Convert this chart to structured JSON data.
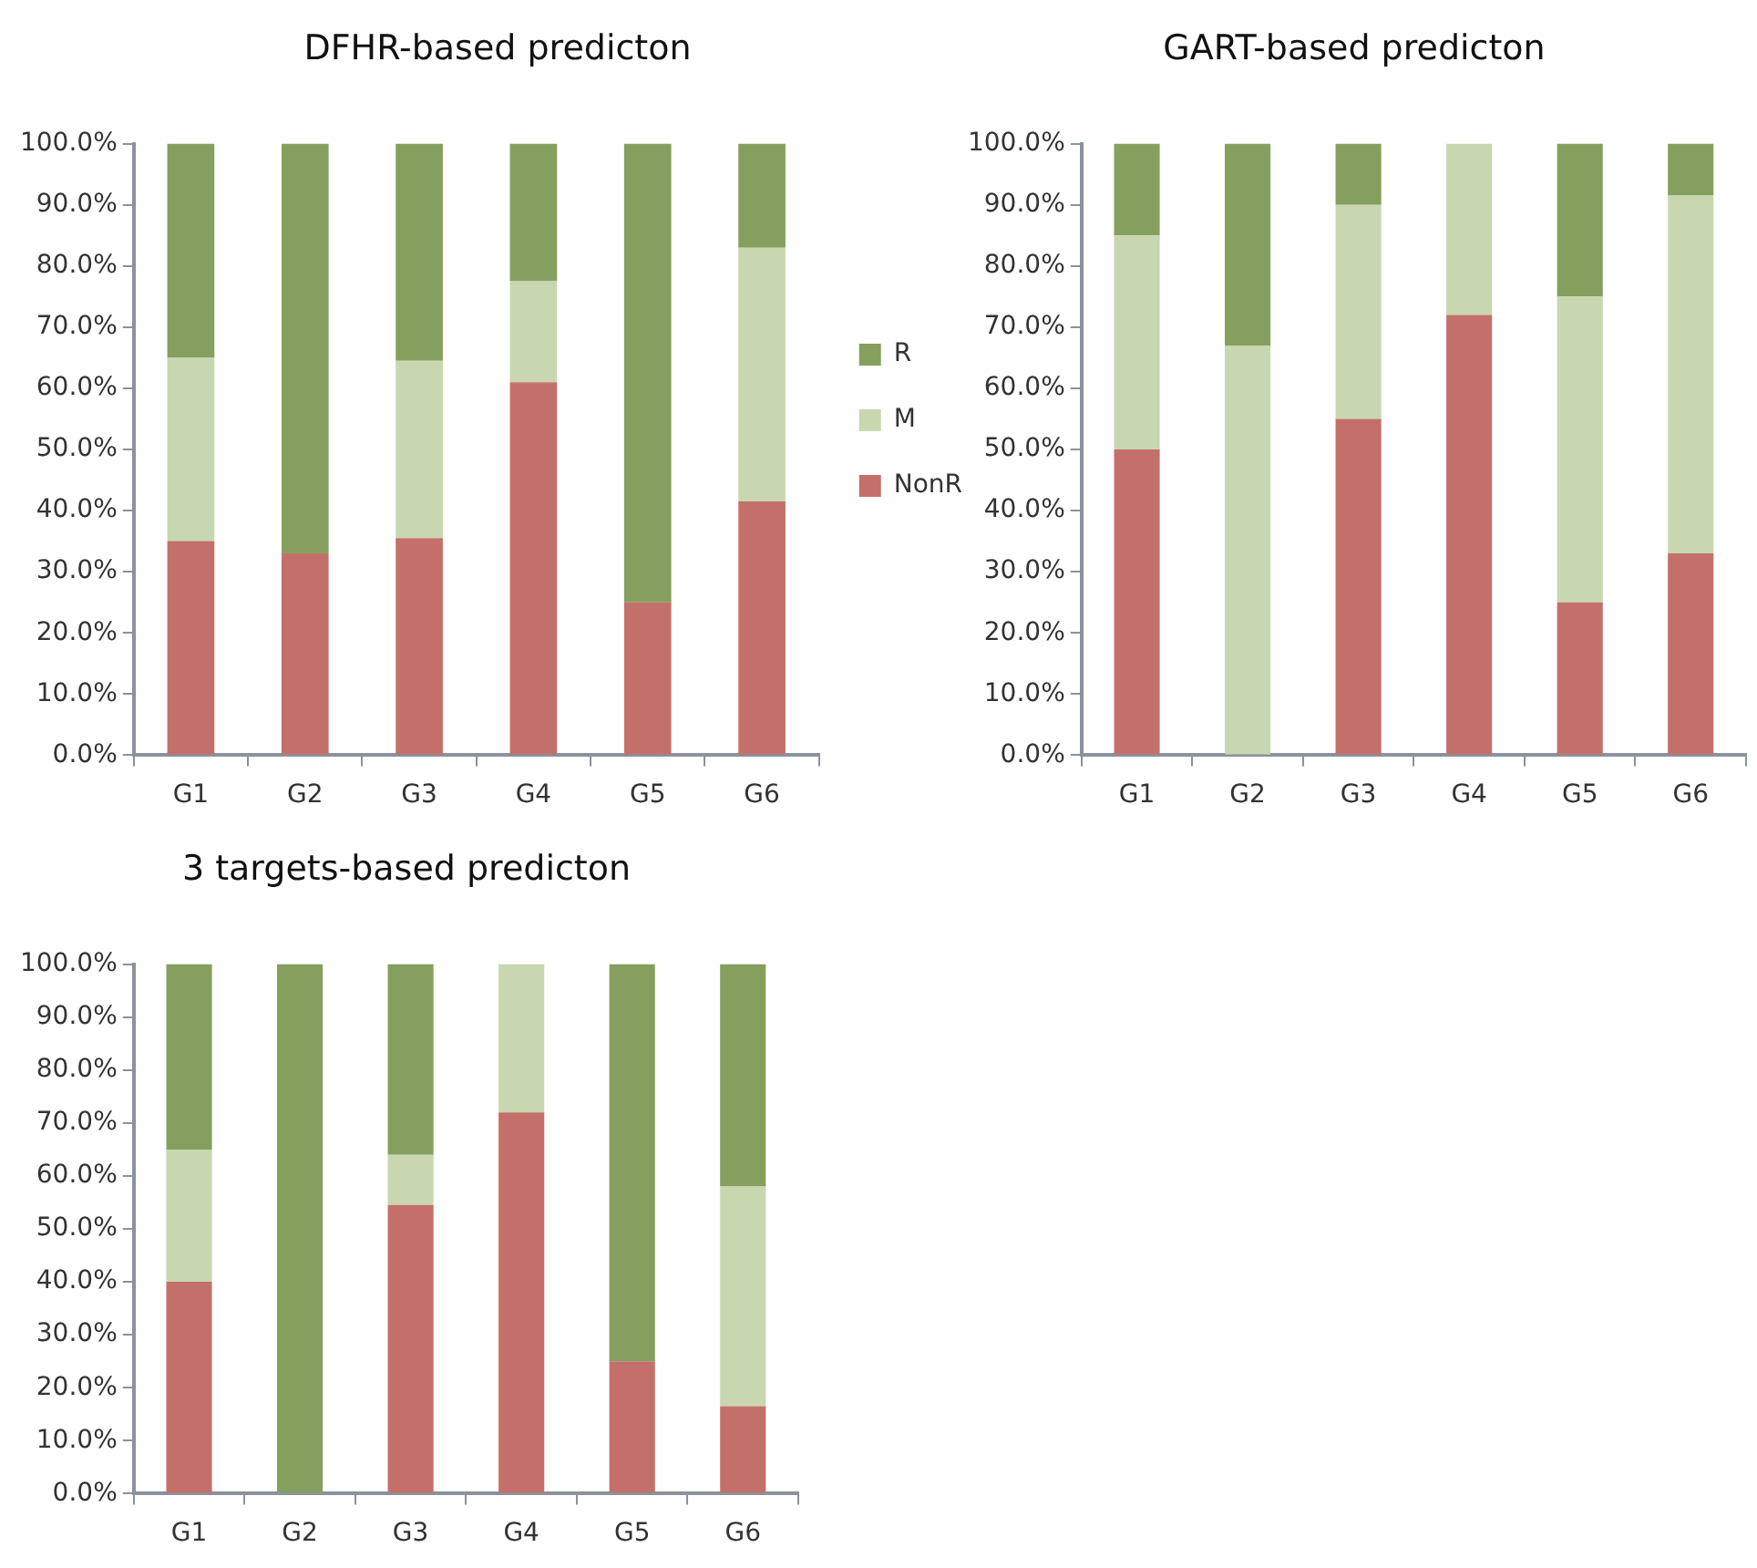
{
  "chart_data": [
    {
      "type": "bar",
      "title": "DFHR-based predicton",
      "categories": [
        "G1",
        "G2",
        "G3",
        "G4",
        "G5",
        "G6"
      ],
      "stacked": true,
      "legend": "right",
      "grid": false,
      "ylim": [
        0,
        100
      ],
      "yticks": [
        {
          "value": 0,
          "label": "0.0%"
        },
        {
          "value": 10,
          "label": "10.0%"
        },
        {
          "value": 20,
          "label": "20.0%"
        },
        {
          "value": 30,
          "label": "30.0%"
        },
        {
          "value": 40,
          "label": "40.0%"
        },
        {
          "value": 50,
          "label": "50.0%"
        },
        {
          "value": 60,
          "label": "60.0%"
        },
        {
          "value": 70,
          "label": "70.0%"
        },
        {
          "value": 80,
          "label": "80.0%"
        },
        {
          "value": 90,
          "label": "90.0%"
        },
        {
          "value": 100,
          "label": "100.0%"
        }
      ],
      "series": [
        {
          "name": "NonR",
          "color": "#c4706a",
          "values": [
            35,
            33,
            35.5,
            61,
            25,
            41.5
          ]
        },
        {
          "name": "M",
          "color": "#c8d7b0",
          "values": [
            30,
            0,
            29,
            16.5,
            0,
            41.5
          ]
        },
        {
          "name": "R",
          "color": "#85a05e",
          "values": [
            35,
            67,
            35.5,
            22.5,
            75,
            17
          ]
        }
      ]
    },
    {
      "type": "bar",
      "title": "GART-based predicton",
      "categories": [
        "G1",
        "G2",
        "G3",
        "G4",
        "G5",
        "G6"
      ],
      "stacked": true,
      "grid": false,
      "ylim": [
        0,
        100
      ],
      "yticks": [
        {
          "value": 0,
          "label": "0.0%"
        },
        {
          "value": 10,
          "label": "10.0%"
        },
        {
          "value": 20,
          "label": "20.0%"
        },
        {
          "value": 30,
          "label": "30.0%"
        },
        {
          "value": 40,
          "label": "40.0%"
        },
        {
          "value": 50,
          "label": "50.0%"
        },
        {
          "value": 60,
          "label": "60.0%"
        },
        {
          "value": 70,
          "label": "70.0%"
        },
        {
          "value": 80,
          "label": "80.0%"
        },
        {
          "value": 90,
          "label": "90.0%"
        },
        {
          "value": 100,
          "label": "100.0%"
        }
      ],
      "series": [
        {
          "color": "#c4706a",
          "values": [
            50,
            0,
            55,
            72,
            25,
            33
          ]
        },
        {
          "color": "#c8d7b0",
          "values": [
            35,
            67,
            35,
            28,
            50,
            58.5
          ]
        },
        {
          "color": "#85a05e",
          "values": [
            15,
            33,
            10,
            0,
            25,
            8.5
          ]
        }
      ]
    },
    {
      "type": "bar",
      "title": "3 targets-based predicton",
      "categories": [
        "G1",
        "G2",
        "G3",
        "G4",
        "G5",
        "G6"
      ],
      "stacked": true,
      "grid": false,
      "ylim": [
        0,
        100
      ],
      "yticks": [
        {
          "value": 0,
          "label": "0.0%"
        },
        {
          "value": 10,
          "label": "10.0%"
        },
        {
          "value": 20,
          "label": "20.0%"
        },
        {
          "value": 30,
          "label": "30.0%"
        },
        {
          "value": 40,
          "label": "40.0%"
        },
        {
          "value": 50,
          "label": "50.0%"
        },
        {
          "value": 60,
          "label": "60.0%"
        },
        {
          "value": 70,
          "label": "70.0%"
        },
        {
          "value": 80,
          "label": "80.0%"
        },
        {
          "value": 90,
          "label": "90.0%"
        },
        {
          "value": 100,
          "label": "100.0%"
        }
      ],
      "series": [
        {
          "color": "#c4706a",
          "values": [
            40,
            0,
            54.5,
            72,
            25,
            16.5
          ]
        },
        {
          "color": "#c8d7b0",
          "values": [
            25,
            0,
            9.5,
            28,
            0,
            41.5
          ]
        },
        {
          "color": "#85a05e",
          "values": [
            35,
            100,
            36,
            0,
            75,
            42
          ]
        }
      ]
    }
  ]
}
